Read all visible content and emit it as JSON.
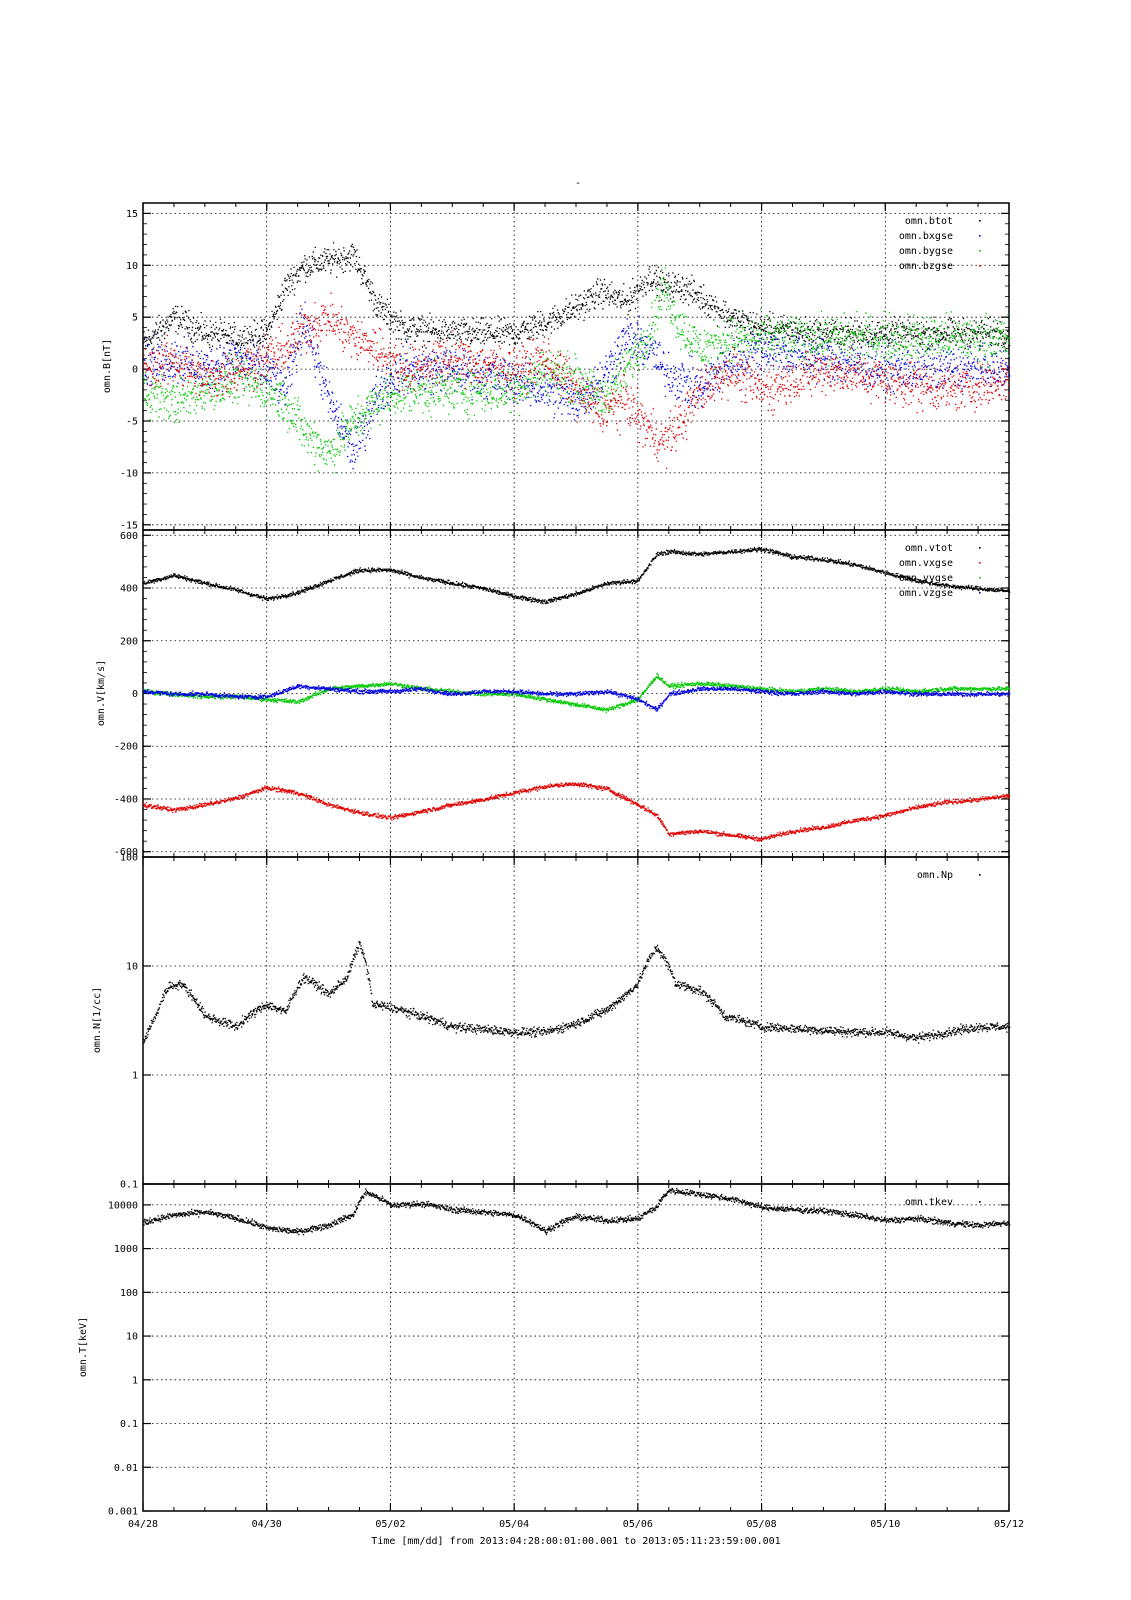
{
  "title": "-",
  "x_axis": {
    "label": "Time [mm/dd]  from 2013:04:28:00:01:00.001  to  2013:05:11:23:59:00.001",
    "range": [
      0,
      14
    ],
    "ticks": [
      {
        "v": 0,
        "label": "04/28"
      },
      {
        "v": 2,
        "label": "04/30"
      },
      {
        "v": 4,
        "label": "05/02"
      },
      {
        "v": 6,
        "label": "05/04"
      },
      {
        "v": 8,
        "label": "05/06"
      },
      {
        "v": 10,
        "label": "05/08"
      },
      {
        "v": 12,
        "label": "05/10"
      },
      {
        "v": 14,
        "label": "05/12"
      }
    ],
    "minor_step_days": 0.5
  },
  "colors": {
    "black": "#000000",
    "red": "#e00000",
    "green": "#00c800",
    "blue": "#0000e0"
  },
  "chart_data": [
    {
      "type": "scatter",
      "id": "b",
      "ylabel": "omn.B[nT]",
      "scale": "linear",
      "ylim": [
        -15.5,
        16
      ],
      "yticks": [
        {
          "v": 15,
          "label": "15"
        },
        {
          "v": 10,
          "label": "10"
        },
        {
          "v": 5,
          "label": "5"
        },
        {
          "v": 0,
          "label": "0"
        },
        {
          "v": -5,
          "label": "-5"
        },
        {
          "v": -10,
          "label": "-10"
        },
        {
          "v": -15,
          "label": "-15"
        }
      ],
      "grid": true,
      "legend_position": "top-right",
      "x": [
        0,
        0.5,
        1,
        1.5,
        2,
        2.3,
        2.6,
        3,
        3.4,
        3.8,
        4.2,
        5,
        6,
        6.5,
        7,
        7.4,
        7.8,
        8.2,
        8.4,
        8.7,
        9,
        9.5,
        10,
        11,
        12,
        13,
        14
      ],
      "series": [
        {
          "name": "omn.btot",
          "color": "#000000",
          "values": [
            2.5,
            5,
            3.5,
            3,
            3.5,
            8,
            10,
            10.5,
            11,
            6,
            4,
            3.5,
            3.5,
            4.5,
            6,
            7.5,
            6.5,
            9,
            8,
            8,
            7,
            5,
            4,
            3.5,
            3.5,
            3.5,
            3.5
          ]
        },
        {
          "name": "omn.bxgse",
          "color": "#0000e0",
          "values": [
            0.5,
            1,
            0,
            1,
            0,
            -2,
            5,
            -3,
            -8,
            -2,
            0,
            0,
            -1,
            -2,
            -3,
            -1,
            3,
            2,
            0,
            -1,
            -2,
            1,
            2,
            1,
            0,
            0,
            0
          ]
        },
        {
          "name": "omn.bygse",
          "color": "#00c800",
          "values": [
            -2,
            -3,
            -2,
            -1,
            -2,
            -3,
            -6,
            -8,
            -5,
            -3,
            -2,
            -2,
            -2,
            0,
            -1,
            -3,
            0,
            4,
            8,
            4,
            2,
            3,
            3,
            3,
            3,
            3,
            3
          ]
        },
        {
          "name": "omn.bzgse",
          "color": "#e00000",
          "values": [
            0,
            1,
            -1,
            0,
            1,
            2,
            4,
            5,
            3,
            2,
            0,
            1,
            0,
            1,
            -2,
            -4,
            -3,
            -6,
            -7,
            -5,
            -2,
            0,
            -2,
            0,
            -1,
            -2,
            -1
          ]
        }
      ]
    },
    {
      "type": "scatter",
      "id": "v",
      "ylabel": "omn.V[km/s]",
      "scale": "linear",
      "ylim": [
        -620,
        620
      ],
      "yticks": [
        {
          "v": 600,
          "label": "600"
        },
        {
          "v": 400,
          "label": "400"
        },
        {
          "v": 200,
          "label": "200"
        },
        {
          "v": 0,
          "label": "0"
        },
        {
          "v": -200,
          "label": "-200"
        },
        {
          "v": -400,
          "label": "-400"
        },
        {
          "v": -600,
          "label": "-600"
        }
      ],
      "grid": true,
      "legend_position": "top-right",
      "x": [
        0,
        0.5,
        1,
        1.5,
        2,
        2.5,
        3,
        3.5,
        4,
        4.5,
        5,
        5.5,
        6,
        6.5,
        7,
        7.5,
        8,
        8.3,
        8.5,
        9,
        9.5,
        10,
        10.5,
        11,
        11.5,
        12,
        12.5,
        13,
        13.5,
        14
      ],
      "series": [
        {
          "name": "omn.vtot",
          "color": "#000000",
          "values": [
            420,
            450,
            420,
            395,
            360,
            385,
            430,
            470,
            470,
            440,
            420,
            400,
            370,
            350,
            380,
            420,
            430,
            530,
            540,
            530,
            540,
            550,
            520,
            510,
            490,
            460,
            430,
            410,
            400,
            390
          ]
        },
        {
          "name": "omn.vxgse",
          "color": "#e00000",
          "values": [
            -420,
            -440,
            -420,
            -395,
            -355,
            -375,
            -420,
            -450,
            -470,
            -445,
            -420,
            -400,
            -375,
            -350,
            -340,
            -360,
            -420,
            -460,
            -530,
            -520,
            -535,
            -550,
            -520,
            -505,
            -480,
            -460,
            -430,
            -410,
            -400,
            -385
          ]
        },
        {
          "name": "omn.vygse",
          "color": "#00c800",
          "values": [
            10,
            0,
            -10,
            -10,
            -20,
            -30,
            20,
            30,
            40,
            20,
            10,
            0,
            0,
            -20,
            -40,
            -60,
            -20,
            70,
            30,
            40,
            30,
            20,
            10,
            20,
            10,
            20,
            10,
            20,
            20,
            20
          ]
        },
        {
          "name": "omn.vzgse",
          "color": "#0000e0",
          "values": [
            10,
            0,
            0,
            -10,
            -10,
            30,
            20,
            10,
            10,
            20,
            0,
            10,
            10,
            0,
            0,
            10,
            -20,
            -60,
            0,
            20,
            20,
            10,
            0,
            10,
            0,
            10,
            0,
            0,
            0,
            0
          ]
        }
      ]
    },
    {
      "type": "scatter",
      "id": "n",
      "ylabel": "omn.N[1/cc]",
      "scale": "log",
      "ylim": [
        0.1,
        100
      ],
      "yticks": [
        {
          "v": 100,
          "label": "100"
        },
        {
          "v": 10,
          "label": "10"
        },
        {
          "v": 1,
          "label": "1"
        },
        {
          "v": 0.1,
          "label": "0.1"
        }
      ],
      "grid": true,
      "legend_position": "top-right",
      "x": [
        0,
        0.2,
        0.4,
        0.6,
        1,
        1.5,
        1.7,
        2,
        2.3,
        2.6,
        3,
        3.3,
        3.5,
        3.7,
        4,
        5,
        6,
        6.5,
        7,
        7.5,
        7.8,
        8,
        8.3,
        8.6,
        9,
        9.4,
        10,
        11,
        11.5,
        12,
        12.5,
        13,
        13.5,
        14
      ],
      "series": [
        {
          "name": "omn.Np",
          "color": "#000000",
          "values": [
            2,
            3.5,
            6.5,
            7,
            3.5,
            2.8,
            3.5,
            4.5,
            3.8,
            8,
            5.5,
            8,
            16,
            4.5,
            4.2,
            2.8,
            2.5,
            2.5,
            3,
            4,
            5.5,
            7,
            15,
            7,
            6,
            3.5,
            2.8,
            2.6,
            2.5,
            2.5,
            2.2,
            2.5,
            2.8,
            2.8
          ]
        }
      ]
    },
    {
      "type": "scatter",
      "id": "t",
      "ylabel": "omn.T[keV]",
      "scale": "log",
      "ylim": [
        0.001,
        30000
      ],
      "yticks": [
        {
          "v": 10000,
          "label": "10000"
        },
        {
          "v": 1000,
          "label": "1000"
        },
        {
          "v": 100,
          "label": "100"
        },
        {
          "v": 10,
          "label": "10"
        },
        {
          "v": 1,
          "label": "1"
        },
        {
          "v": 0.1,
          "label": "0.1"
        },
        {
          "v": 0.01,
          "label": "0.01"
        },
        {
          "v": 0.001,
          "label": "0.001"
        }
      ],
      "grid": true,
      "legend_position": "top-right",
      "x": [
        0,
        0.5,
        1,
        1.5,
        2,
        2.5,
        3,
        3.4,
        3.6,
        4,
        4.5,
        5,
        6,
        6.5,
        7,
        7.5,
        8,
        8.3,
        8.5,
        9,
        9.5,
        10,
        10.5,
        11,
        12,
        12.5,
        13,
        13.5,
        14
      ],
      "series": [
        {
          "name": "omn.tkev",
          "color": "#000000",
          "values": [
            4000,
            6000,
            7000,
            5000,
            3000,
            2500,
            3500,
            6000,
            20000,
            10000,
            11000,
            8000,
            6000,
            2500,
            5500,
            4500,
            5000,
            9000,
            22000,
            18000,
            14000,
            9000,
            8000,
            7500,
            4500,
            5000,
            4000,
            3500,
            4000
          ]
        }
      ]
    }
  ]
}
